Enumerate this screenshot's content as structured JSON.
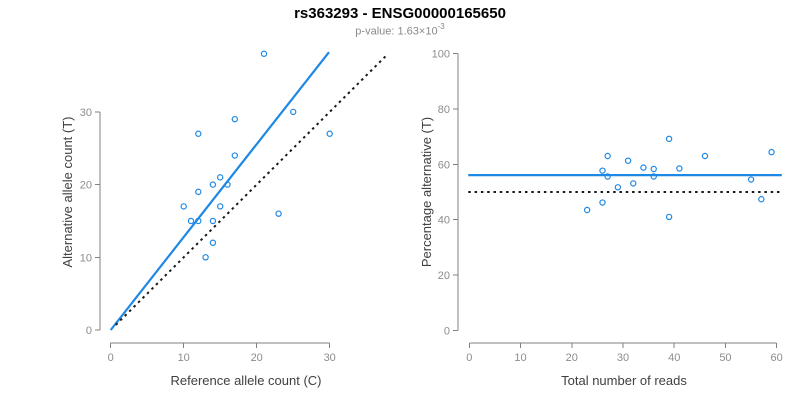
{
  "header": {
    "title": "rs363293 - ENSG00000165650",
    "subtitle_text": "p-value: 1.63×10",
    "pvalue_exponent": "-3",
    "pvalue": "1.63e-3"
  },
  "colors": {
    "accent_blue": "#1E88E5",
    "dotted_black": "#1a1a1a",
    "axis_gray": "#808080",
    "tick_label_gray": "#8c8c8c",
    "axis_title_gray": "#404040"
  },
  "chart_data": [
    {
      "type": "scatter",
      "name": "allele-counts",
      "xlabel": "Reference allele count (C)",
      "ylabel": "Alternative allele count (T)",
      "xticks": [
        0,
        10,
        20,
        30
      ],
      "yticks": [
        0,
        10,
        20,
        30
      ],
      "xlim": [
        0,
        30
      ],
      "ylim": [
        0,
        30
      ],
      "grid": false,
      "legend": "none",
      "points": [
        [
          21,
          38
        ],
        [
          17,
          29
        ],
        [
          12,
          27
        ],
        [
          25,
          30
        ],
        [
          30,
          27
        ],
        [
          17,
          24
        ],
        [
          14,
          20
        ],
        [
          15,
          21
        ],
        [
          16,
          20
        ],
        [
          12,
          19
        ],
        [
          10,
          17
        ],
        [
          15,
          17
        ],
        [
          11,
          15
        ],
        [
          12,
          15
        ],
        [
          14,
          15
        ],
        [
          23,
          16
        ],
        [
          14,
          12
        ],
        [
          13,
          10
        ]
      ],
      "lines": [
        {
          "name": "regression",
          "dash": "solid",
          "slope": 1.278,
          "intercept": 0,
          "x_range": [
            0,
            29.9
          ]
        },
        {
          "name": "identity",
          "dash": "dotted",
          "slope": 1,
          "intercept": 0,
          "x_range": [
            0.7,
            37.9
          ]
        }
      ]
    },
    {
      "type": "scatter",
      "name": "percentage-reads",
      "xlabel": "Total number of reads",
      "ylabel": "Percentage alternative (T)",
      "xticks": [
        0,
        10,
        20,
        30,
        40,
        50,
        60
      ],
      "yticks": [
        0,
        20,
        40,
        60,
        80,
        100
      ],
      "xlim": [
        0,
        60
      ],
      "ylim": [
        0,
        100
      ],
      "grid": false,
      "legend": "none",
      "points": [
        [
          59,
          64.4
        ],
        [
          46,
          63.0
        ],
        [
          39,
          69.2
        ],
        [
          55,
          54.5
        ],
        [
          57,
          47.4
        ],
        [
          41,
          58.5
        ],
        [
          34,
          58.8
        ],
        [
          36,
          58.3
        ],
        [
          36,
          55.6
        ],
        [
          31,
          61.3
        ],
        [
          27,
          63.0
        ],
        [
          32,
          53.1
        ],
        [
          26,
          57.7
        ],
        [
          27,
          55.6
        ],
        [
          29,
          51.7
        ],
        [
          39,
          41.0
        ],
        [
          26,
          46.2
        ],
        [
          23,
          43.5
        ]
      ],
      "lines": [
        {
          "name": "mean-percentage",
          "dash": "solid",
          "slope": 0,
          "intercept": 56.1,
          "x_range": [
            -0.2,
            61
          ]
        },
        {
          "name": "fifty-percent",
          "dash": "dotted",
          "slope": 0,
          "intercept": 50,
          "x_range": [
            -0.2,
            61
          ]
        }
      ]
    }
  ]
}
